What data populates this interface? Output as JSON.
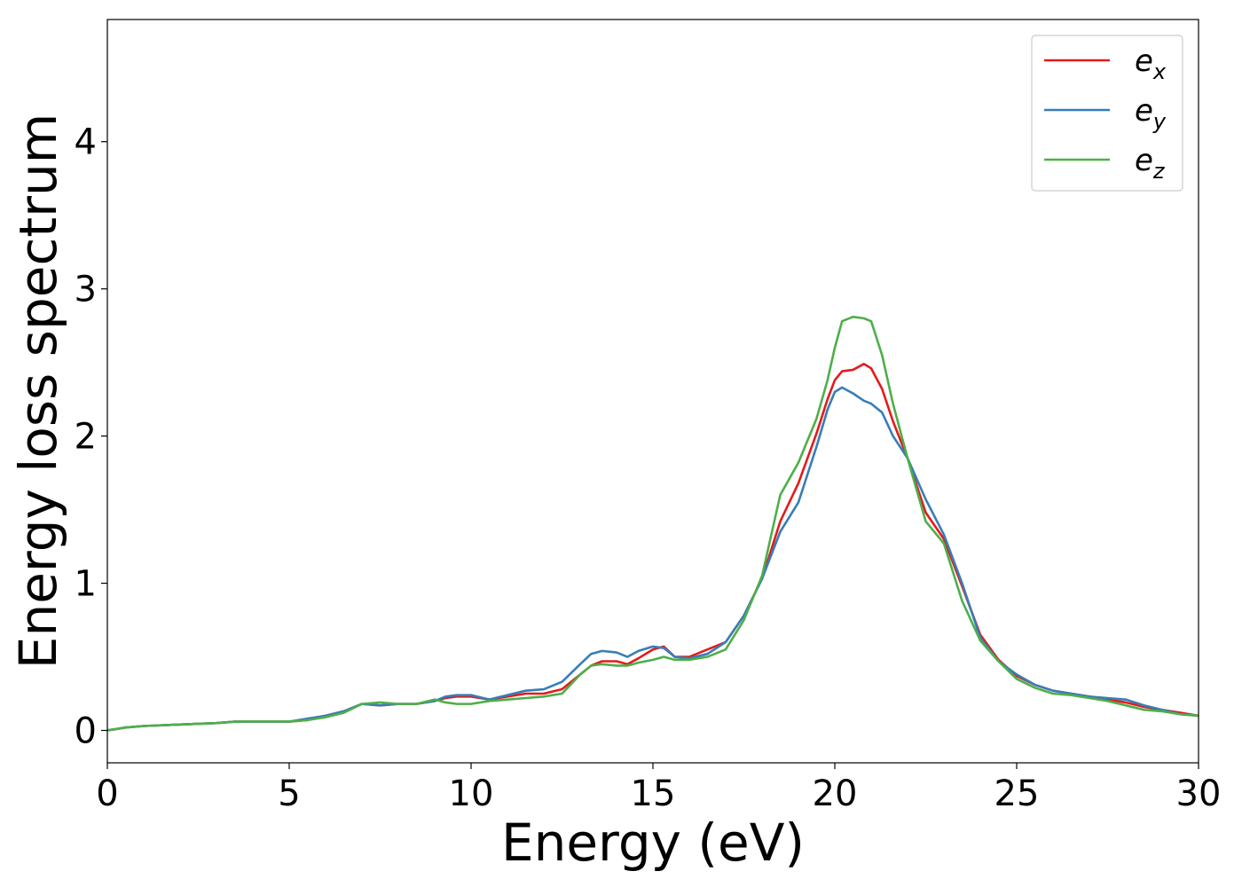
{
  "chart_data": {
    "type": "line",
    "title": "",
    "xlabel": "Energy (eV)",
    "ylabel": "Energy loss spectrum",
    "xlim": [
      0,
      30
    ],
    "ylim": [
      -0.22,
      4.83
    ],
    "xticks": [
      0,
      5,
      10,
      15,
      20,
      25,
      30
    ],
    "yticks": [
      0,
      1,
      2,
      3,
      4
    ],
    "grid": false,
    "legend_position": "top-right",
    "series": [
      {
        "name": "e_x",
        "base": "e",
        "sub": "x",
        "color": "#e41a1c",
        "points": [
          [
            0,
            0.0
          ],
          [
            0.5,
            0.02
          ],
          [
            1,
            0.03
          ],
          [
            2,
            0.04
          ],
          [
            3,
            0.05
          ],
          [
            3.5,
            0.06
          ],
          [
            4,
            0.06
          ],
          [
            4.5,
            0.06
          ],
          [
            5,
            0.06
          ],
          [
            5.5,
            0.07
          ],
          [
            6,
            0.1
          ],
          [
            6.5,
            0.13
          ],
          [
            7,
            0.18
          ],
          [
            7.5,
            0.17
          ],
          [
            8,
            0.18
          ],
          [
            8.5,
            0.18
          ],
          [
            9,
            0.2
          ],
          [
            9.3,
            0.22
          ],
          [
            9.6,
            0.23
          ],
          [
            10,
            0.23
          ],
          [
            10.5,
            0.21
          ],
          [
            11,
            0.23
          ],
          [
            11.5,
            0.25
          ],
          [
            12,
            0.25
          ],
          [
            12.5,
            0.28
          ],
          [
            13,
            0.38
          ],
          [
            13.3,
            0.44
          ],
          [
            13.6,
            0.47
          ],
          [
            14,
            0.47
          ],
          [
            14.3,
            0.45
          ],
          [
            14.6,
            0.49
          ],
          [
            15,
            0.55
          ],
          [
            15.3,
            0.57
          ],
          [
            15.6,
            0.5
          ],
          [
            16,
            0.5
          ],
          [
            16.5,
            0.55
          ],
          [
            17,
            0.6
          ],
          [
            17.5,
            0.78
          ],
          [
            18,
            1.03
          ],
          [
            18.5,
            1.42
          ],
          [
            19,
            1.68
          ],
          [
            19.5,
            2.02
          ],
          [
            19.8,
            2.25
          ],
          [
            20,
            2.38
          ],
          [
            20.2,
            2.44
          ],
          [
            20.5,
            2.45
          ],
          [
            20.8,
            2.49
          ],
          [
            21,
            2.46
          ],
          [
            21.3,
            2.32
          ],
          [
            21.6,
            2.1
          ],
          [
            22,
            1.85
          ],
          [
            22.5,
            1.48
          ],
          [
            23,
            1.3
          ],
          [
            23.5,
            0.98
          ],
          [
            24,
            0.65
          ],
          [
            24.5,
            0.48
          ],
          [
            25,
            0.37
          ],
          [
            25.5,
            0.31
          ],
          [
            26,
            0.27
          ],
          [
            26.5,
            0.25
          ],
          [
            27,
            0.23
          ],
          [
            27.5,
            0.21
          ],
          [
            28,
            0.19
          ],
          [
            28.5,
            0.16
          ],
          [
            29,
            0.14
          ],
          [
            29.5,
            0.12
          ],
          [
            30,
            0.1
          ]
        ]
      },
      {
        "name": "e_y",
        "base": "e",
        "sub": "y",
        "color": "#377eb8",
        "points": [
          [
            0,
            0.0
          ],
          [
            0.5,
            0.02
          ],
          [
            1,
            0.03
          ],
          [
            2,
            0.04
          ],
          [
            3,
            0.05
          ],
          [
            3.5,
            0.06
          ],
          [
            4,
            0.06
          ],
          [
            4.5,
            0.06
          ],
          [
            5,
            0.06
          ],
          [
            5.5,
            0.08
          ],
          [
            6,
            0.1
          ],
          [
            6.5,
            0.13
          ],
          [
            7,
            0.18
          ],
          [
            7.5,
            0.17
          ],
          [
            8,
            0.18
          ],
          [
            8.5,
            0.18
          ],
          [
            9,
            0.2
          ],
          [
            9.3,
            0.23
          ],
          [
            9.6,
            0.24
          ],
          [
            10,
            0.24
          ],
          [
            10.5,
            0.21
          ],
          [
            11,
            0.24
          ],
          [
            11.5,
            0.27
          ],
          [
            12,
            0.28
          ],
          [
            12.5,
            0.33
          ],
          [
            13,
            0.45
          ],
          [
            13.3,
            0.52
          ],
          [
            13.6,
            0.54
          ],
          [
            14,
            0.53
          ],
          [
            14.3,
            0.5
          ],
          [
            14.6,
            0.54
          ],
          [
            15,
            0.57
          ],
          [
            15.3,
            0.56
          ],
          [
            15.6,
            0.5
          ],
          [
            16,
            0.49
          ],
          [
            16.5,
            0.52
          ],
          [
            17,
            0.6
          ],
          [
            17.5,
            0.78
          ],
          [
            18,
            1.03
          ],
          [
            18.5,
            1.35
          ],
          [
            19,
            1.55
          ],
          [
            19.5,
            1.93
          ],
          [
            19.8,
            2.18
          ],
          [
            20,
            2.3
          ],
          [
            20.2,
            2.33
          ],
          [
            20.5,
            2.29
          ],
          [
            20.8,
            2.24
          ],
          [
            21,
            2.22
          ],
          [
            21.3,
            2.16
          ],
          [
            21.6,
            2.0
          ],
          [
            22,
            1.85
          ],
          [
            22.5,
            1.57
          ],
          [
            23,
            1.33
          ],
          [
            23.5,
            1.0
          ],
          [
            24,
            0.63
          ],
          [
            24.5,
            0.47
          ],
          [
            25,
            0.38
          ],
          [
            25.5,
            0.31
          ],
          [
            26,
            0.27
          ],
          [
            26.5,
            0.25
          ],
          [
            27,
            0.23
          ],
          [
            27.5,
            0.22
          ],
          [
            28,
            0.21
          ],
          [
            28.5,
            0.17
          ],
          [
            29,
            0.14
          ],
          [
            29.5,
            0.11
          ],
          [
            30,
            0.1
          ]
        ]
      },
      {
        "name": "e_z",
        "base": "e",
        "sub": "z",
        "color": "#4daf4a",
        "points": [
          [
            0,
            0.0
          ],
          [
            0.5,
            0.02
          ],
          [
            1,
            0.03
          ],
          [
            2,
            0.04
          ],
          [
            3,
            0.05
          ],
          [
            3.5,
            0.06
          ],
          [
            4,
            0.06
          ],
          [
            4.5,
            0.06
          ],
          [
            5,
            0.06
          ],
          [
            5.5,
            0.07
          ],
          [
            6,
            0.09
          ],
          [
            6.5,
            0.12
          ],
          [
            7,
            0.18
          ],
          [
            7.5,
            0.19
          ],
          [
            8,
            0.18
          ],
          [
            8.5,
            0.18
          ],
          [
            9,
            0.21
          ],
          [
            9.3,
            0.19
          ],
          [
            9.6,
            0.18
          ],
          [
            10,
            0.18
          ],
          [
            10.5,
            0.2
          ],
          [
            11,
            0.21
          ],
          [
            11.5,
            0.22
          ],
          [
            12,
            0.23
          ],
          [
            12.5,
            0.25
          ],
          [
            13,
            0.38
          ],
          [
            13.3,
            0.44
          ],
          [
            13.6,
            0.45
          ],
          [
            14,
            0.44
          ],
          [
            14.3,
            0.44
          ],
          [
            14.6,
            0.46
          ],
          [
            15,
            0.48
          ],
          [
            15.3,
            0.5
          ],
          [
            15.6,
            0.48
          ],
          [
            16,
            0.48
          ],
          [
            16.5,
            0.5
          ],
          [
            17,
            0.55
          ],
          [
            17.5,
            0.75
          ],
          [
            18,
            1.05
          ],
          [
            18.5,
            1.6
          ],
          [
            19,
            1.82
          ],
          [
            19.5,
            2.12
          ],
          [
            19.8,
            2.38
          ],
          [
            20,
            2.6
          ],
          [
            20.2,
            2.78
          ],
          [
            20.5,
            2.81
          ],
          [
            20.8,
            2.8
          ],
          [
            21,
            2.78
          ],
          [
            21.3,
            2.55
          ],
          [
            21.6,
            2.22
          ],
          [
            22,
            1.85
          ],
          [
            22.5,
            1.42
          ],
          [
            23,
            1.27
          ],
          [
            23.5,
            0.88
          ],
          [
            24,
            0.61
          ],
          [
            24.5,
            0.47
          ],
          [
            25,
            0.35
          ],
          [
            25.5,
            0.29
          ],
          [
            26,
            0.25
          ],
          [
            26.5,
            0.24
          ],
          [
            27,
            0.22
          ],
          [
            27.5,
            0.2
          ],
          [
            28,
            0.17
          ],
          [
            28.5,
            0.14
          ],
          [
            29,
            0.13
          ],
          [
            29.5,
            0.11
          ],
          [
            30,
            0.1
          ]
        ]
      }
    ]
  }
}
